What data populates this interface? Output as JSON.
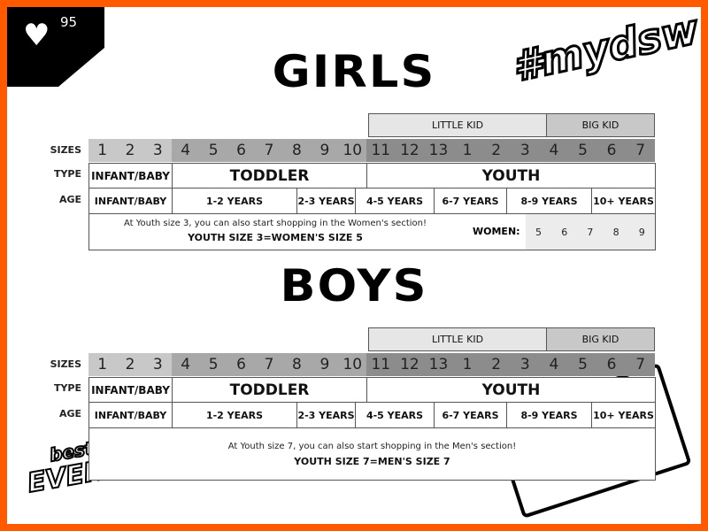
{
  "badge": {
    "icon": "heart-icon",
    "count": "95"
  },
  "hashtag": "#mydsw",
  "logo_text": "best of EVERYTHING",
  "colors": {
    "border": "#ff5a00",
    "infant": "#c8c8c8",
    "toddler": "#a8a8a8",
    "youth": "#8c8c8c",
    "little_kid": "#e6e6e6",
    "big_kid": "#c8c8c8",
    "women_bg": "#ececec"
  },
  "labels": {
    "sizes": "SIZES",
    "type": "TYPE",
    "age": "AGE"
  },
  "charts": [
    {
      "title": "GIRLS",
      "groups": {
        "little_kid": "LITTLE KID",
        "big_kid": "BIG KID"
      },
      "sizes": {
        "infant": [
          "1",
          "2",
          "3"
        ],
        "toddler": [
          "4",
          "5",
          "6",
          "7",
          "8",
          "9",
          "10"
        ],
        "youth": [
          "11",
          "12",
          "13",
          "1",
          "2",
          "3",
          "4",
          "5",
          "6",
          "7"
        ]
      },
      "types": [
        "INFANT/BABY",
        "TODDLER",
        "YOUTH"
      ],
      "ages": [
        "INFANT/BABY",
        "1-2 YEARS",
        "2-3 YEARS",
        "4-5 YEARS",
        "6-7 YEARS",
        "8-9 YEARS",
        "10+ YEARS"
      ],
      "note": "At Youth size 3, you can also start shopping in the Women's section!",
      "note_bold": "YOUTH SIZE 3=WOMEN'S SIZE 5",
      "women_label": "WOMEN:",
      "women_sizes": [
        "5",
        "6",
        "7",
        "8",
        "9"
      ]
    },
    {
      "title": "BOYS",
      "groups": {
        "little_kid": "LITTLE KID",
        "big_kid": "BIG KID"
      },
      "sizes": {
        "infant": [
          "1",
          "2",
          "3"
        ],
        "toddler": [
          "4",
          "5",
          "6",
          "7",
          "8",
          "9",
          "10"
        ],
        "youth": [
          "11",
          "12",
          "13",
          "1",
          "2",
          "3",
          "4",
          "5",
          "6",
          "7"
        ]
      },
      "types": [
        "INFANT/BABY",
        "TODDLER",
        "YOUTH"
      ],
      "ages": [
        "INFANT/BABY",
        "1-2 YEARS",
        "2-3 YEARS",
        "4-5 YEARS",
        "6-7 YEARS",
        "8-9 YEARS",
        "10+ YEARS"
      ],
      "note": "At Youth size 7, you can also start shopping in the Men's section!",
      "note_bold": "YOUTH SIZE 7=MEN'S SIZE 7"
    }
  ]
}
